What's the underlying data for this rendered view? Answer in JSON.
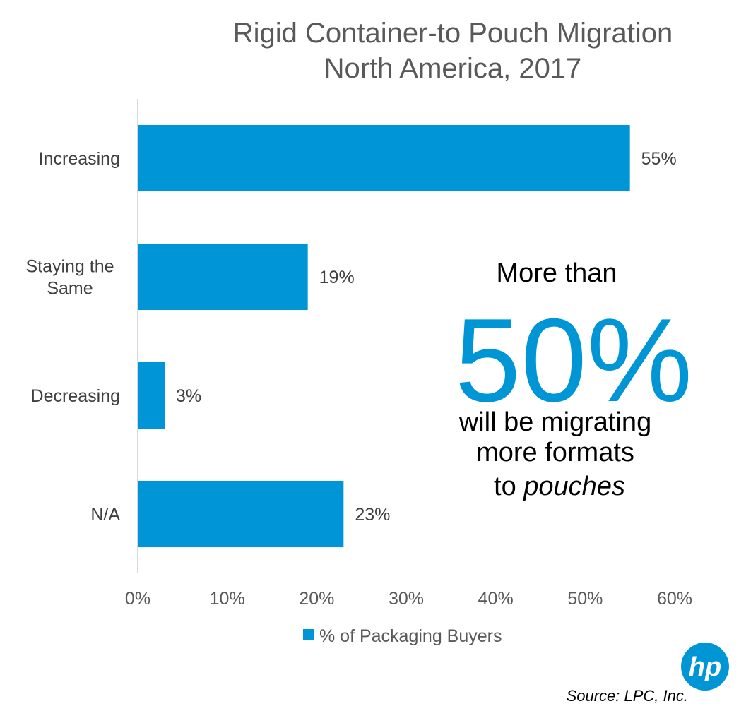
{
  "chart_data": {
    "type": "bar",
    "orientation": "horizontal",
    "title": [
      "Rigid Container-to Pouch Migration",
      "North America, 2017"
    ],
    "categories": [
      [
        "Increasing"
      ],
      [
        "Staying the",
        "Same"
      ],
      [
        "Decreasing"
      ],
      [
        "N/A"
      ]
    ],
    "series": [
      {
        "name": "% of Packaging Buyers",
        "values": [
          55,
          19,
          3,
          23
        ],
        "labels": [
          "55%",
          "19%",
          "3%",
          "23%"
        ]
      }
    ],
    "xlim": [
      0,
      60
    ],
    "xticks": [
      0,
      10,
      20,
      30,
      40,
      50,
      60
    ],
    "xtick_labels": [
      "0%",
      "10%",
      "20%",
      "30%",
      "40%",
      "50%",
      "60%"
    ],
    "grid": false,
    "legend_position": "bottom",
    "annotations": {
      "callout_top": "More than",
      "callout_big": "50%",
      "callout_line1": "will be migrating",
      "callout_line2": "more formats",
      "callout_line3_prefix": "to ",
      "callout_line3_emphasis": "pouches"
    }
  },
  "colors": {
    "bar": "#0095D6",
    "callout_big": "#0096D6",
    "axis": "#D9D9D9",
    "logo": "#0096D6"
  },
  "logo": {
    "text": "hp",
    "icon": "hp-logo-icon"
  },
  "source": "Source: LPC, Inc."
}
